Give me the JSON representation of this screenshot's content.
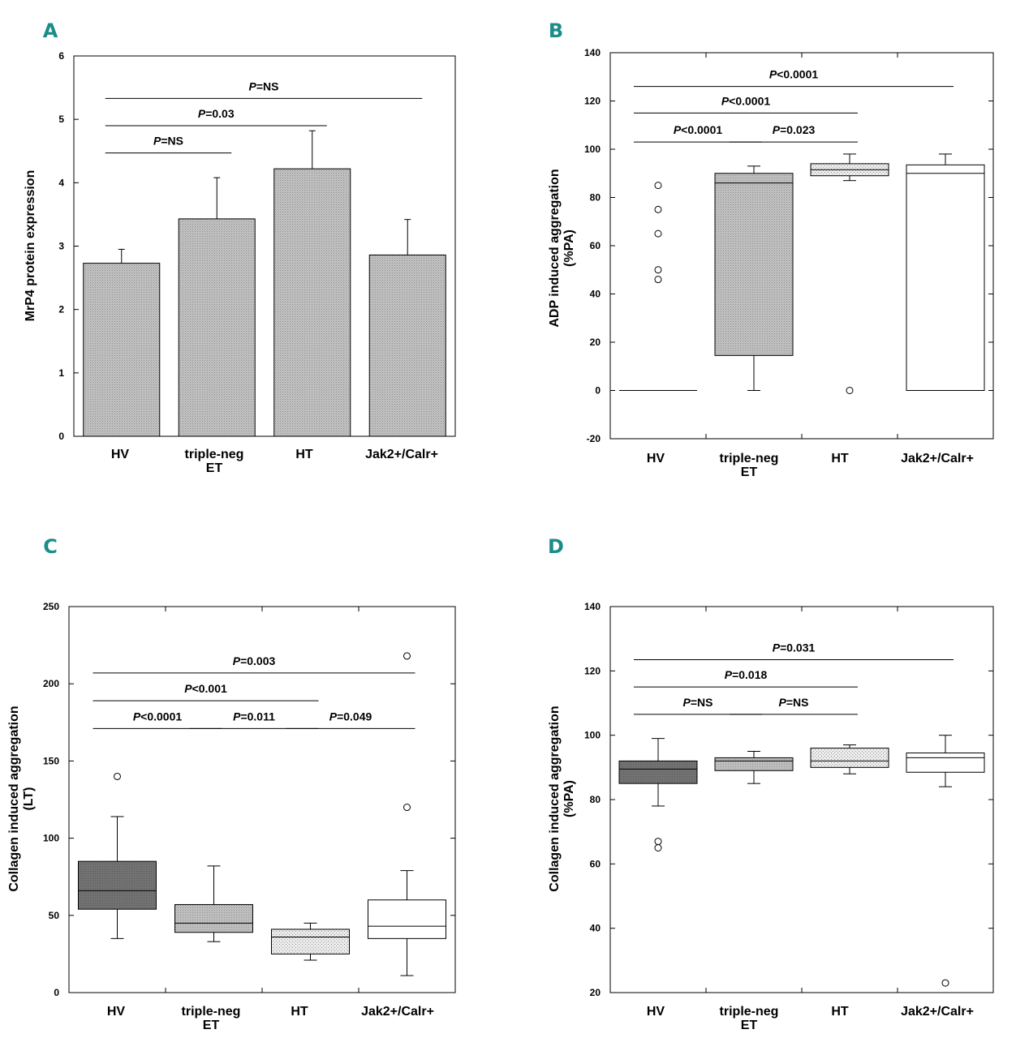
{
  "colors": {
    "panel_letter": "#1b8c88",
    "dark_fill": "#6e6e6e",
    "medium_fill": "#bdbdbd",
    "light_fill": "#e3e3e3",
    "white_fill": "#ffffff"
  },
  "chart_data": [
    {
      "panel": "A",
      "type": "bar",
      "ylabel": "MrP4 protein expression",
      "ylim": [
        0,
        6
      ],
      "yticks": [
        0,
        1,
        2,
        3,
        4,
        5,
        6
      ],
      "categories": [
        "HV",
        "triple-neg\nET",
        "HT",
        "Jak2+/Calr+"
      ],
      "values": [
        2.73,
        3.43,
        4.22,
        2.86
      ],
      "error_upper": [
        2.95,
        4.08,
        4.82,
        3.42
      ],
      "significance": [
        {
          "from": 0,
          "to": 1,
          "label": "P=NS",
          "y": 4.47
        },
        {
          "from": 0,
          "to": 2,
          "label": "P=0.03",
          "y": 4.9
        },
        {
          "from": 0,
          "to": 3,
          "label": "P=NS",
          "y": 5.33
        }
      ]
    },
    {
      "panel": "B",
      "type": "box",
      "ylabel": "ADP induced aggregation\n(%PA)",
      "ylim": [
        -20,
        140
      ],
      "yticks": [
        -20,
        0,
        20,
        40,
        60,
        80,
        100,
        120,
        140
      ],
      "categories": [
        "HV",
        "triple-neg\nET",
        "HT",
        "Jak2+/Calr+"
      ],
      "boxes": [
        {
          "q1": 0,
          "median": 0,
          "q3": 0,
          "whisker_low": 0,
          "whisker_high": 0,
          "outliers": [
            46,
            50,
            65,
            75,
            85
          ],
          "fill": "white"
        },
        {
          "q1": 14.5,
          "median": 86,
          "q3": 90,
          "whisker_low": 0,
          "whisker_high": 93,
          "outliers": [],
          "fill": "medium"
        },
        {
          "q1": 89,
          "median": 91.5,
          "q3": 94,
          "whisker_low": 87,
          "whisker_high": 98,
          "outliers": [
            0
          ],
          "fill": "light"
        },
        {
          "q1": 0,
          "median": 90,
          "q3": 93.5,
          "whisker_low": 0,
          "whisker_high": 98,
          "outliers": [],
          "fill": "white"
        }
      ],
      "significance": [
        {
          "from": 0,
          "to": 1,
          "label": "P<0.0001",
          "y": 103
        },
        {
          "from": 1,
          "to": 2,
          "label": "P=0.023",
          "y": 103
        },
        {
          "from": 0,
          "to": 2,
          "label": "P<0.0001",
          "y": 115
        },
        {
          "from": 0,
          "to": 3,
          "label": "P<0.0001",
          "y": 126
        }
      ]
    },
    {
      "panel": "C",
      "type": "box",
      "ylabel": "Collagen induced aggregation\n(LT)",
      "ylim": [
        0,
        250
      ],
      "yticks": [
        0,
        50,
        100,
        150,
        200,
        250
      ],
      "categories": [
        "HV",
        "triple-neg\nET",
        "HT",
        "Jak2+/Calr+"
      ],
      "boxes": [
        {
          "q1": 54,
          "median": 66,
          "q3": 85,
          "whisker_low": 35,
          "whisker_high": 114,
          "outliers": [
            140
          ],
          "fill": "dark"
        },
        {
          "q1": 39,
          "median": 45,
          "q3": 57,
          "whisker_low": 33,
          "whisker_high": 82,
          "outliers": [],
          "fill": "medium"
        },
        {
          "q1": 25,
          "median": 36,
          "q3": 41,
          "whisker_low": 21,
          "whisker_high": 45,
          "outliers": [],
          "fill": "light"
        },
        {
          "q1": 35,
          "median": 43,
          "q3": 60,
          "whisker_low": 11,
          "whisker_high": 79,
          "outliers": [
            120,
            218
          ],
          "fill": "white"
        }
      ],
      "significance": [
        {
          "from": 0,
          "to": 1,
          "label": "P<0.0001",
          "y": 171
        },
        {
          "from": 1,
          "to": 2,
          "label": "P=0.011",
          "y": 171
        },
        {
          "from": 2,
          "to": 3,
          "label": "P=0.049",
          "y": 171
        },
        {
          "from": 0,
          "to": 2,
          "label": "P<0.001",
          "y": 189
        },
        {
          "from": 0,
          "to": 3,
          "label": "P=0.003",
          "y": 207
        }
      ]
    },
    {
      "panel": "D",
      "type": "box",
      "ylabel": "Collagen induced aggregation\n(%PA)",
      "ylim": [
        20,
        140
      ],
      "yticks": [
        20,
        40,
        60,
        80,
        100,
        120,
        140
      ],
      "categories": [
        "HV",
        "triple-neg\nET",
        "HT",
        "Jak2+/Calr+"
      ],
      "boxes": [
        {
          "q1": 85,
          "median": 89.5,
          "q3": 92,
          "whisker_low": 78,
          "whisker_high": 99,
          "outliers": [
            65,
            67
          ],
          "fill": "dark"
        },
        {
          "q1": 89,
          "median": 92,
          "q3": 93,
          "whisker_low": 85,
          "whisker_high": 95,
          "outliers": [],
          "fill": "medium"
        },
        {
          "q1": 90,
          "median": 92,
          "q3": 96,
          "whisker_low": 88,
          "whisker_high": 97,
          "outliers": [],
          "fill": "light"
        },
        {
          "q1": 88.5,
          "median": 93,
          "q3": 94.5,
          "whisker_low": 84,
          "whisker_high": 100,
          "outliers": [
            23
          ],
          "fill": "white"
        }
      ],
      "significance": [
        {
          "from": 0,
          "to": 1,
          "label": "P=NS",
          "y": 106.5
        },
        {
          "from": 1,
          "to": 2,
          "label": "P=NS",
          "y": 106.5
        },
        {
          "from": 0,
          "to": 2,
          "label": "P=0.018",
          "y": 115
        },
        {
          "from": 0,
          "to": 3,
          "label": "P=0.031",
          "y": 123.5
        }
      ]
    }
  ]
}
